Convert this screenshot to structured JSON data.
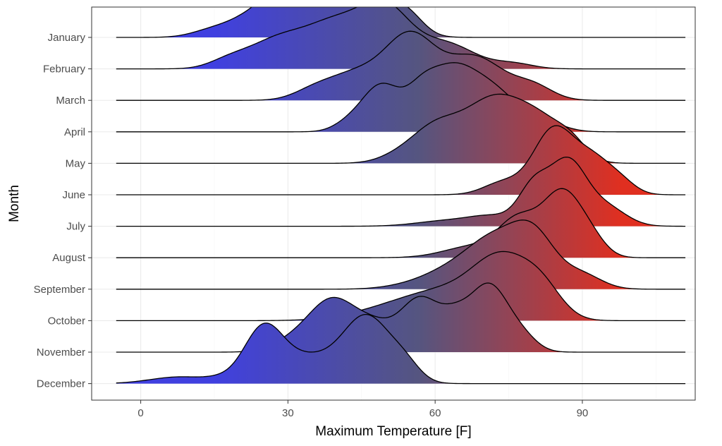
{
  "chart_data": {
    "type": "ridgeline",
    "xlabel": "Maximum Temperature [F]",
    "ylabel": "Month",
    "xlim": [
      -10,
      113
    ],
    "x_breaks": [
      0,
      30,
      60,
      90
    ],
    "x_range": [
      -5,
      111
    ],
    "fill_gradient": {
      "low": "#4040e0",
      "mid": "#555580",
      "high": "#e02f20",
      "low_value": 15,
      "high_value": 98
    },
    "theme": "bw",
    "grid": true,
    "months": [
      {
        "name": "January",
        "peaks": [
          [
            14,
            4,
            0.08
          ],
          [
            22,
            5,
            0.22
          ],
          [
            33,
            6,
            1.0
          ],
          [
            48,
            5,
            0.62
          ],
          [
            55,
            3,
            0.18
          ]
        ]
      },
      {
        "name": "February",
        "peaks": [
          [
            18,
            4,
            0.12
          ],
          [
            28,
            6,
            0.45
          ],
          [
            40,
            6,
            0.68
          ],
          [
            50,
            5,
            0.85
          ],
          [
            62,
            6,
            0.4
          ],
          [
            76,
            4,
            0.08
          ]
        ]
      },
      {
        "name": "March",
        "peaks": [
          [
            35,
            4,
            0.12
          ],
          [
            44,
            6,
            0.45
          ],
          [
            55,
            5,
            1.0
          ],
          [
            68,
            6,
            0.72
          ],
          [
            80,
            4,
            0.22
          ]
        ]
      },
      {
        "name": "April",
        "peaks": [
          [
            42,
            3,
            0.1
          ],
          [
            49,
            4,
            0.75
          ],
          [
            57,
            3,
            0.35
          ],
          [
            63,
            5,
            0.95
          ],
          [
            72,
            5,
            0.6
          ],
          [
            82,
            4,
            0.15
          ]
        ]
      },
      {
        "name": "May",
        "peaks": [
          [
            52,
            4,
            0.08
          ],
          [
            60,
            5,
            0.55
          ],
          [
            72,
            6,
            1.0
          ],
          [
            82,
            5,
            0.55
          ],
          [
            88,
            3,
            0.2
          ]
        ]
      },
      {
        "name": "June",
        "peaks": [
          [
            74,
            4,
            0.2
          ],
          [
            84,
            4,
            1.0
          ],
          [
            92,
            4,
            0.55
          ],
          [
            98,
            3,
            0.15
          ]
        ]
      },
      {
        "name": "July",
        "peaks": [
          [
            62,
            6,
            0.08
          ],
          [
            72,
            5,
            0.15
          ],
          [
            80,
            3,
            0.55
          ],
          [
            87,
            3.8,
            1.0
          ],
          [
            95,
            4,
            0.28
          ]
        ]
      },
      {
        "name": "August",
        "peaks": [
          [
            68,
            6,
            0.18
          ],
          [
            77,
            4,
            0.55
          ],
          [
            86,
            4,
            1.0
          ],
          [
            92,
            3,
            0.2
          ]
        ]
      },
      {
        "name": "September",
        "peaks": [
          [
            54,
            5,
            0.04
          ],
          [
            64,
            6,
            0.32
          ],
          [
            72,
            5,
            0.62
          ],
          [
            80,
            4.5,
            0.85
          ],
          [
            90,
            4,
            0.22
          ]
        ]
      },
      {
        "name": "October",
        "peaks": [
          [
            50,
            8,
            0.12
          ],
          [
            62,
            8,
            0.32
          ],
          [
            74,
            6,
            0.72
          ],
          [
            82,
            4,
            0.28
          ]
        ]
      },
      {
        "name": "November",
        "peaks": [
          [
            30,
            4,
            0.08
          ],
          [
            39,
            5,
            0.55
          ],
          [
            48,
            4,
            0.22
          ],
          [
            57,
            4,
            0.55
          ],
          [
            64,
            3,
            0.25
          ],
          [
            71,
            4,
            0.7
          ],
          [
            78,
            3,
            0.12
          ]
        ]
      },
      {
        "name": "December",
        "peaks": [
          [
            8,
            6,
            0.1
          ],
          [
            16,
            3,
            0.04
          ],
          [
            25,
            4,
            0.82
          ],
          [
            34,
            5,
            0.35
          ],
          [
            46,
            5,
            1.0
          ],
          [
            54,
            3,
            0.2
          ]
        ]
      }
    ]
  }
}
